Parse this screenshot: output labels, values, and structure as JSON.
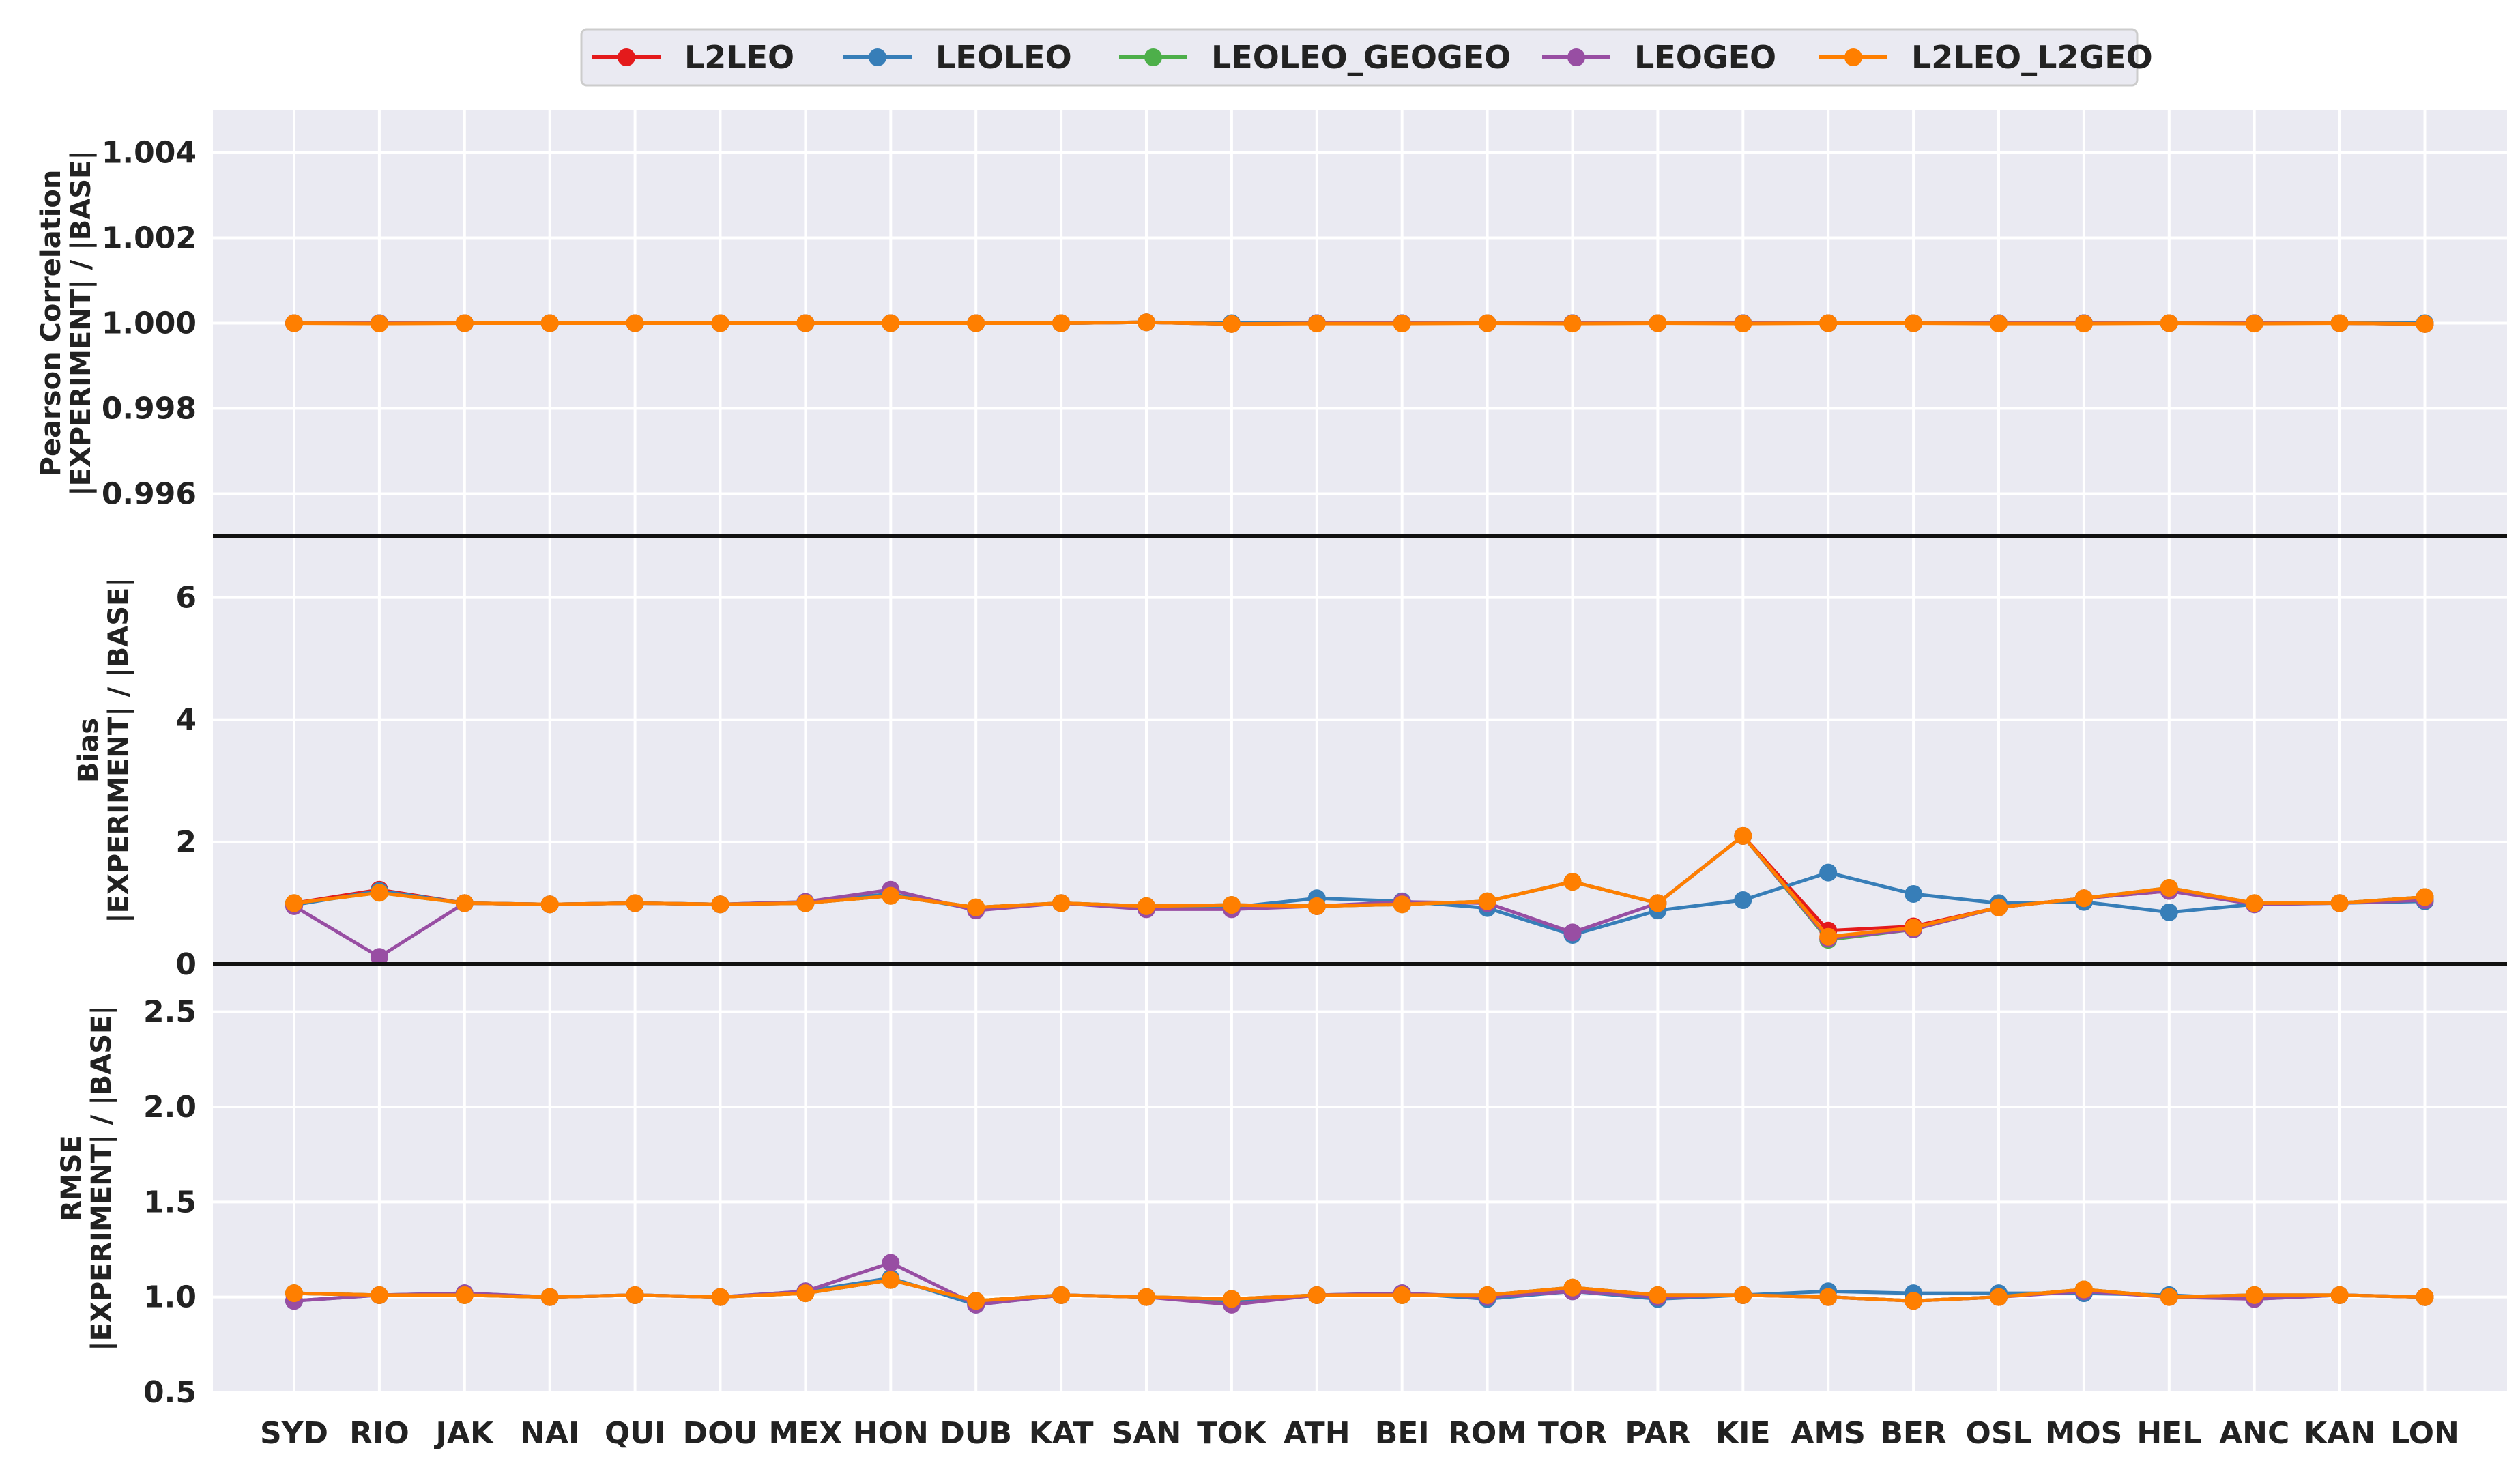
{
  "chart_data": [
    {
      "type": "line",
      "ylabel_lines": [
        "Pearson Correlation",
        "|EXPERIMENT| / |BASE|"
      ],
      "ylim": [
        0.995,
        1.005
      ],
      "yticks": [
        "0.996",
        "0.998",
        "1.000",
        "1.002",
        "1.004"
      ],
      "ytick_values": [
        0.996,
        0.998,
        1.0,
        1.002,
        1.004
      ],
      "grid": true,
      "series": [
        {
          "name": "L2LEO",
          "values": [
            1,
            1,
            1,
            1,
            1,
            1,
            1,
            1,
            1,
            1,
            1.00002,
            0.99998,
            1,
            1,
            1,
            1,
            1,
            1,
            1,
            1,
            1,
            1,
            1,
            1,
            1,
            0.99998
          ]
        },
        {
          "name": "LEOLEO",
          "values": [
            1,
            1,
            1,
            1,
            1,
            1,
            1,
            1,
            1,
            1,
            1.00002,
            1,
            1,
            1,
            1,
            1,
            1,
            1,
            1,
            1,
            1,
            1,
            1,
            1,
            1,
            1
          ]
        },
        {
          "name": "LEOLEO_GEOGEO",
          "values": [
            1,
            1,
            1,
            1,
            1,
            1,
            1,
            1,
            1,
            1,
            1.00002,
            0.99998,
            1,
            1,
            1,
            1,
            1,
            1,
            1,
            1,
            1,
            1,
            1,
            1,
            1,
            0.99998
          ]
        },
        {
          "name": "LEOGEO",
          "values": [
            1,
            1,
            1,
            1,
            1,
            1,
            1,
            1,
            1,
            1,
            1.00002,
            0.99998,
            1,
            1,
            1,
            1,
            1,
            1,
            1,
            1,
            1,
            1,
            1,
            1,
            1,
            0.99998
          ]
        },
        {
          "name": "L2LEO_L2GEO",
          "values": [
            1,
            0.99999,
            1,
            1,
            1,
            1,
            1,
            1,
            1,
            1,
            1.00002,
            0.99998,
            0.99999,
            0.99999,
            1,
            0.99999,
            1,
            0.99999,
            1,
            1,
            0.99999,
            0.99999,
            1,
            0.99999,
            1,
            0.99998
          ]
        }
      ]
    },
    {
      "type": "line",
      "ylabel_lines": [
        "Bias",
        "|EXPERIMENT| / |BASE|"
      ],
      "ylim": [
        0,
        7
      ],
      "yticks": [
        "0",
        "2",
        "4",
        "6"
      ],
      "ytick_values": [
        0,
        2,
        4,
        6
      ],
      "grid": true,
      "series": [
        {
          "name": "L2LEO",
          "values": [
            1.0,
            1.22,
            1.0,
            0.98,
            1.0,
            0.98,
            1.0,
            1.12,
            0.93,
            1.0,
            0.95,
            0.97,
            0.95,
            0.98,
            1.03,
            1.35,
            1.0,
            2.1,
            0.55,
            0.62,
            0.93,
            1.08,
            1.2,
            1.0,
            1.0,
            1.1
          ]
        },
        {
          "name": "LEOLEO",
          "values": [
            0.97,
            1.2,
            1.0,
            0.98,
            1.0,
            0.98,
            1.02,
            1.15,
            0.9,
            1.0,
            0.92,
            0.93,
            1.08,
            1.03,
            0.92,
            0.48,
            0.88,
            1.05,
            1.5,
            1.15,
            1.0,
            1.02,
            0.85,
            0.98,
            1.0,
            1.03
          ]
        },
        {
          "name": "LEOLEO_GEOGEO",
          "values": [
            1.0,
            1.17,
            1.0,
            0.98,
            1.0,
            0.98,
            1.0,
            1.12,
            0.93,
            1.0,
            0.95,
            0.97,
            0.95,
            0.98,
            1.03,
            1.35,
            1.0,
            2.1,
            0.4,
            0.57,
            0.93,
            1.08,
            1.25,
            1.0,
            1.0,
            1.1
          ]
        },
        {
          "name": "LEOGEO",
          "values": [
            0.95,
            0.12,
            1.0,
            0.98,
            1.0,
            0.98,
            1.02,
            1.22,
            0.88,
            1.0,
            0.9,
            0.9,
            0.95,
            1.02,
            1.0,
            0.52,
            1.0,
            2.1,
            0.42,
            0.57,
            0.93,
            1.08,
            1.2,
            0.98,
            1.0,
            1.05
          ]
        },
        {
          "name": "L2LEO_L2GEO",
          "values": [
            1.0,
            1.17,
            1.0,
            0.98,
            1.0,
            0.98,
            1.0,
            1.12,
            0.93,
            1.0,
            0.95,
            0.97,
            0.95,
            0.98,
            1.03,
            1.35,
            1.0,
            2.1,
            0.45,
            0.6,
            0.93,
            1.08,
            1.25,
            1.0,
            1.0,
            1.1
          ]
        }
      ]
    },
    {
      "type": "line",
      "ylabel_lines": [
        "RMSE",
        "|EXPERIMENT| / |BASE|"
      ],
      "ylim": [
        0.5,
        2.75
      ],
      "yticks": [
        "0.5",
        "1.0",
        "1.5",
        "2.0",
        "2.5"
      ],
      "ytick_values": [
        0.5,
        1.0,
        1.5,
        2.0,
        2.5
      ],
      "grid": true,
      "series": [
        {
          "name": "L2LEO",
          "values": [
            1.02,
            1.01,
            1.01,
            1.0,
            1.01,
            1.0,
            1.02,
            1.09,
            0.98,
            1.01,
            1.0,
            0.99,
            1.01,
            1.01,
            1.01,
            1.05,
            1.01,
            1.01,
            1.0,
            0.98,
            1.0,
            1.04,
            1.0,
            1.01,
            1.01,
            1.0
          ]
        },
        {
          "name": "LEOLEO",
          "values": [
            0.98,
            1.01,
            1.02,
            1.0,
            1.01,
            1.0,
            1.03,
            1.1,
            0.96,
            1.01,
            1.0,
            0.97,
            1.01,
            1.02,
            0.99,
            1.03,
            0.99,
            1.01,
            1.03,
            1.02,
            1.02,
            1.02,
            1.01,
            0.99,
            1.01,
            1.0
          ]
        },
        {
          "name": "LEOLEO_GEOGEO",
          "values": [
            1.02,
            1.01,
            1.01,
            1.0,
            1.01,
            1.0,
            1.02,
            1.09,
            0.98,
            1.01,
            1.0,
            0.99,
            1.01,
            1.01,
            1.01,
            1.05,
            1.01,
            1.01,
            1.0,
            0.98,
            1.0,
            1.04,
            1.0,
            1.01,
            1.01,
            1.0
          ]
        },
        {
          "name": "LEOGEO",
          "values": [
            0.98,
            1.01,
            1.02,
            1.0,
            1.01,
            1.0,
            1.03,
            1.18,
            0.96,
            1.01,
            1.0,
            0.96,
            1.01,
            1.02,
            1.0,
            1.03,
            1.0,
            1.01,
            1.0,
            0.98,
            1.0,
            1.03,
            1.0,
            0.99,
            1.01,
            1.0
          ]
        },
        {
          "name": "L2LEO_L2GEO",
          "values": [
            1.02,
            1.01,
            1.01,
            1.0,
            1.01,
            1.0,
            1.02,
            1.09,
            0.98,
            1.01,
            1.0,
            0.99,
            1.01,
            1.01,
            1.01,
            1.05,
            1.01,
            1.01,
            1.0,
            0.98,
            1.0,
            1.04,
            1.0,
            1.01,
            1.01,
            1.0
          ]
        }
      ]
    }
  ],
  "categories": [
    "SYD",
    "RIO",
    "JAK",
    "NAI",
    "QUI",
    "DOU",
    "MEX",
    "HON",
    "DUB",
    "KAT",
    "SAN",
    "TOK",
    "ATH",
    "BEI",
    "ROM",
    "TOR",
    "PAR",
    "KIE",
    "AMS",
    "BER",
    "OSL",
    "MOS",
    "HEL",
    "ANC",
    "KAN",
    "LON"
  ],
  "legend": {
    "placement": "top-center",
    "entries": [
      "L2LEO",
      "LEOLEO",
      "LEOLEO_GEOGEO",
      "LEOGEO",
      "L2LEO_L2GEO"
    ]
  },
  "colors": {
    "L2LEO": "#e41a1c",
    "LEOLEO": "#377eb8",
    "LEOLEO_GEOGEO": "#4daf4a",
    "LEOGEO": "#984ea3",
    "L2LEO_L2GEO": "#ff7f00",
    "panel_bg": "#eaeaf2"
  }
}
